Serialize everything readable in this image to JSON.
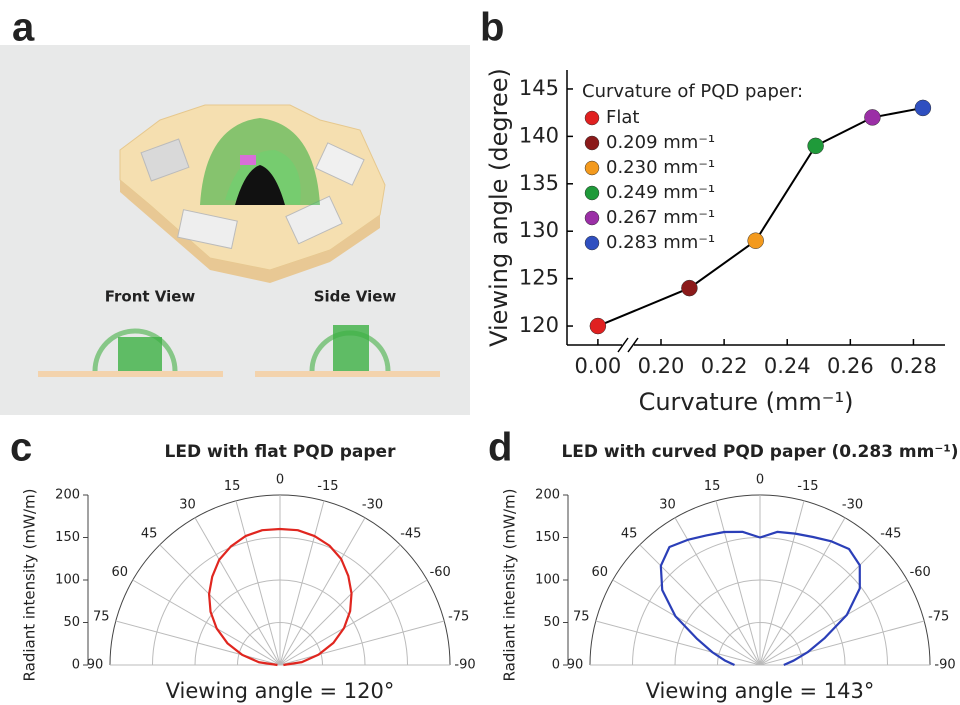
{
  "panel_labels": [
    "a",
    "b",
    "c",
    "d"
  ],
  "illustration": {
    "front_view": "Front View",
    "side_view": "Side View"
  },
  "chart_data": [
    {
      "type": "line",
      "x_label": "Curvature (mm⁻¹)",
      "y_label": "Viewing angle (degree)",
      "x": [
        0,
        0.209,
        0.23,
        0.249,
        0.267,
        0.283
      ],
      "values": [
        120,
        124,
        129,
        139,
        142,
        143
      ],
      "line_color": "#000000",
      "point_colors": [
        "#e02020",
        "#8b1a1a",
        "#f39a1e",
        "#1f9a3a",
        "#9b2fa6",
        "#2f4fc0"
      ],
      "legend_title": "Curvature of PQD paper:",
      "legend_labels": [
        "Flat",
        "0.209 mm⁻¹",
        "0.230 mm⁻¹",
        "0.249 mm⁻¹",
        "0.267 mm⁻¹",
        "0.283 mm⁻¹"
      ],
      "xlim": [
        0,
        0.29
      ],
      "xticks": [
        {
          "value": 0,
          "label": "0.00"
        },
        {
          "value": 0.2,
          "label": "0.20"
        },
        {
          "value": 0.22,
          "label": "0.22"
        },
        {
          "value": 0.24,
          "label": "0.24"
        },
        {
          "value": 0.26,
          "label": "0.26"
        },
        {
          "value": 0.28,
          "label": "0.28"
        }
      ],
      "x_axis_break": true,
      "ylim": [
        118,
        147
      ],
      "yticks": [
        120,
        125,
        130,
        135,
        140,
        145
      ]
    },
    {
      "type": "polar",
      "title": "LED with flat PQD paper",
      "y_label": "Radiant intensity (mW/m)",
      "annotation": "Viewing angle = 120°",
      "color": "#e0261f",
      "theta": [
        90,
        82.5,
        75,
        67.5,
        60,
        52.5,
        45,
        37.5,
        30,
        22.5,
        15,
        7.5,
        0,
        -7.5,
        -15,
        -22.5,
        -30,
        -37.5,
        -45,
        -52.5,
        -60,
        -67.5,
        -75,
        -82.5,
        -90
      ],
      "values": [
        3,
        25,
        46,
        67,
        86,
        103,
        118,
        131,
        143,
        151,
        157,
        160,
        160,
        160,
        157,
        152,
        144,
        132,
        119,
        104,
        87,
        68,
        47,
        26,
        4
      ],
      "rlim": [
        0,
        200
      ],
      "rticks": [
        0,
        50,
        100,
        150,
        200
      ],
      "thetalim": [
        90,
        -90
      ],
      "thetaticks": [
        90,
        75,
        60,
        45,
        30,
        15,
        0,
        -15,
        -30,
        -45,
        -60,
        -75,
        -90
      ],
      "grid": true
    },
    {
      "type": "polar",
      "title": "LED with curved PQD paper (0.283 mm⁻¹)",
      "y_label": "Radiant intensity (mW/m)",
      "annotation": "Viewing angle = 143°",
      "color": "#2b3fb8",
      "theta": [
        90,
        82.5,
        75,
        67.5,
        60,
        52.5,
        45,
        37.5,
        30,
        22.5,
        15,
        7.5,
        0,
        -7.5,
        -15,
        -22.5,
        -30,
        -37.5,
        -45,
        -52.5,
        -60,
        -67.5,
        -75,
        -82.5,
        -90
      ],
      "values": [
        30,
        42,
        58,
        80,
        115,
        145,
        165,
        175,
        170,
        165,
        162,
        158,
        150,
        158,
        160,
        163,
        168,
        172,
        166,
        148,
        118,
        82,
        58,
        40,
        28
      ],
      "rlim": [
        0,
        200
      ],
      "rticks": [
        0,
        50,
        100,
        150,
        200
      ],
      "thetalim": [
        90,
        -90
      ],
      "thetaticks": [
        90,
        75,
        60,
        45,
        30,
        15,
        0,
        -15,
        -30,
        -45,
        -60,
        -75,
        -90
      ],
      "grid": true
    }
  ]
}
